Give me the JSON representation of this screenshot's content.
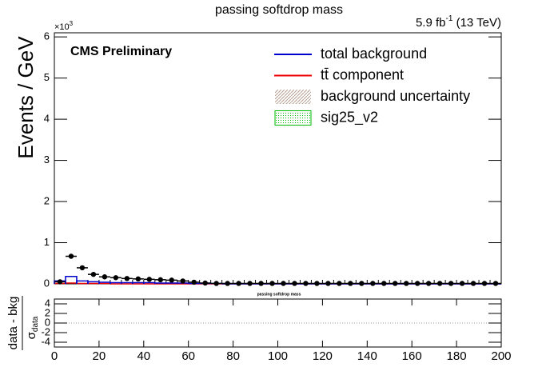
{
  "chart_data": [
    {
      "type": "histogram",
      "title": "passing softdrop mass",
      "lumi": {
        "text": "5.9 fb",
        "exponent": "-1",
        "suffix": " (13 TeV)"
      },
      "cms_label": "CMS Preliminary",
      "y_label": "Events / GeV",
      "y_multiplier": {
        "base": "×10",
        "exponent": "3"
      },
      "bins": [
        0,
        5,
        10,
        15,
        20,
        25,
        30,
        35,
        40,
        45,
        50,
        55,
        60,
        65,
        70,
        75,
        80,
        85,
        90,
        95,
        100,
        105,
        110,
        115,
        120,
        125,
        130,
        135,
        140,
        145,
        150,
        155,
        160,
        165,
        170,
        175,
        180,
        185,
        190,
        195,
        200
      ],
      "data": {
        "color": "#000000",
        "values": [
          0.05,
          0.67,
          0.39,
          0.23,
          0.17,
          0.15,
          0.13,
          0.12,
          0.11,
          0.1,
          0.09,
          0.07,
          0.04,
          0.02,
          0.01,
          0.01,
          0.01,
          0.01,
          0.01,
          0.01,
          0.01,
          0.01,
          0.01,
          0.01,
          0.01,
          0.01,
          0.01,
          0.01,
          0.01,
          0.01,
          0.01,
          0.01,
          0.01,
          0.01,
          0.01,
          0.01,
          0.01,
          0.01,
          0.01,
          0.01
        ]
      },
      "series": [
        {
          "name": "total background",
          "color": "#0000cc",
          "style": "line",
          "values": [
            0.07,
            0.18,
            0.07,
            0.05,
            0.04,
            0.03,
            0.03,
            0.03,
            0.03,
            0.02,
            0.02,
            0.02,
            0.01,
            0.01,
            0.01,
            0,
            0,
            0,
            0,
            0,
            0,
            0,
            0,
            0,
            0,
            0,
            0,
            0,
            0,
            0,
            0,
            0,
            0,
            0,
            0,
            0,
            0,
            0,
            0,
            0
          ]
        },
        {
          "name": "tt̄ component",
          "color": "#ee0000",
          "style": "line",
          "values": [
            0.01,
            0.02,
            0.01,
            0.01,
            0.01,
            0,
            0,
            0,
            0,
            0,
            0,
            0,
            0,
            0,
            0,
            0,
            0,
            0,
            0,
            0,
            0,
            0,
            0,
            0,
            0,
            0,
            0,
            0,
            0,
            0,
            0,
            0,
            0,
            0,
            0,
            0,
            0,
            0,
            0,
            0
          ]
        },
        {
          "name": "background uncertainty",
          "color": "#b59d8f",
          "style": "hatch"
        },
        {
          "name": "sig25_v2",
          "color": "#00bb00",
          "style": "fill"
        }
      ],
      "xlim": [
        0,
        200
      ],
      "ylim": [
        0,
        6.1
      ],
      "yticks": [
        0,
        1,
        2,
        3,
        4,
        5,
        6
      ]
    },
    {
      "type": "pull",
      "title": "passing softdrop mass",
      "y_label": {
        "top": "data - bkg",
        "bottom": "σ",
        "subscript": "data"
      },
      "xlim": [
        0,
        200
      ],
      "xticks": [
        0,
        20,
        40,
        60,
        80,
        100,
        120,
        140,
        160,
        180,
        200
      ],
      "ylim": [
        -5,
        5
      ],
      "yticks": [
        -4,
        -2,
        0,
        2,
        4
      ],
      "zero_line": 0
    }
  ]
}
